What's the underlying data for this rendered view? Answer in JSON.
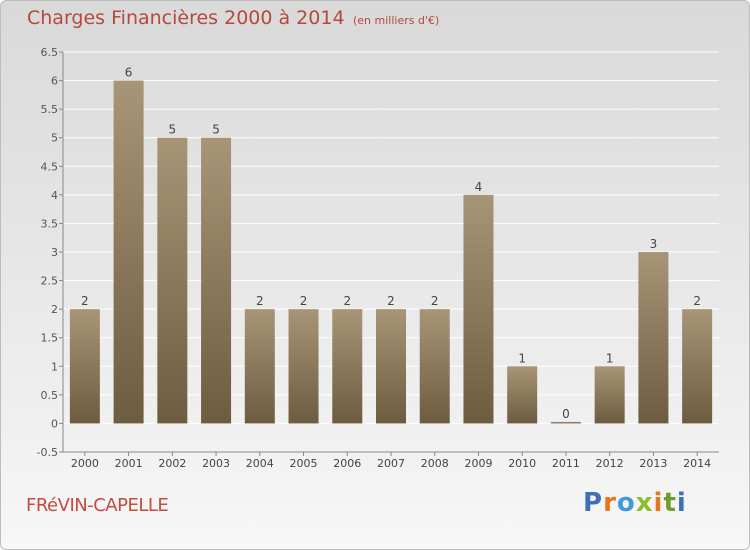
{
  "chart_title": "Charges Financières 2000 à 2014",
  "chart_subtitle": "(en milliers d'€)",
  "town_name": "FRéVIN-CAPELLE",
  "brand": {
    "letters": [
      "P",
      "r",
      "o",
      "x",
      "i",
      "t",
      "i"
    ],
    "colors": [
      "#3f6fb5",
      "#e5751f",
      "#3f9ad6",
      "#8bbd31",
      "#e5751f",
      "#6e9c2d",
      "#3f6fb5"
    ]
  },
  "colors": {
    "bar_top": "#a89578",
    "bar_bottom": "#6e5c40",
    "title": "#b44a3b",
    "axis": "#888888",
    "grid": "#ffffff"
  },
  "chart_data": {
    "type": "bar",
    "categories": [
      "2000",
      "2001",
      "2002",
      "2003",
      "2004",
      "2005",
      "2006",
      "2007",
      "2008",
      "2009",
      "2010",
      "2011",
      "2012",
      "2013",
      "2014"
    ],
    "values": [
      2,
      6,
      5,
      5,
      2,
      2,
      2,
      2,
      2,
      4,
      1,
      0,
      1,
      3,
      2
    ],
    "value_labels": [
      "2",
      "6",
      "5",
      "5",
      "2",
      "2",
      "2",
      "2",
      "2",
      "4",
      "1",
      "0",
      "1",
      "3",
      "2"
    ],
    "yticks": [
      "-0.5",
      "0",
      "0.5",
      "1",
      "1.5",
      "2",
      "2.5",
      "3",
      "3.5",
      "4",
      "4.5",
      "5",
      "5.5",
      "6",
      "6.5"
    ],
    "ylim": [
      -0.5,
      6.5
    ],
    "grid": true,
    "title": "Charges Financières 2000 à 2014",
    "xlabel": "",
    "ylabel": ""
  }
}
